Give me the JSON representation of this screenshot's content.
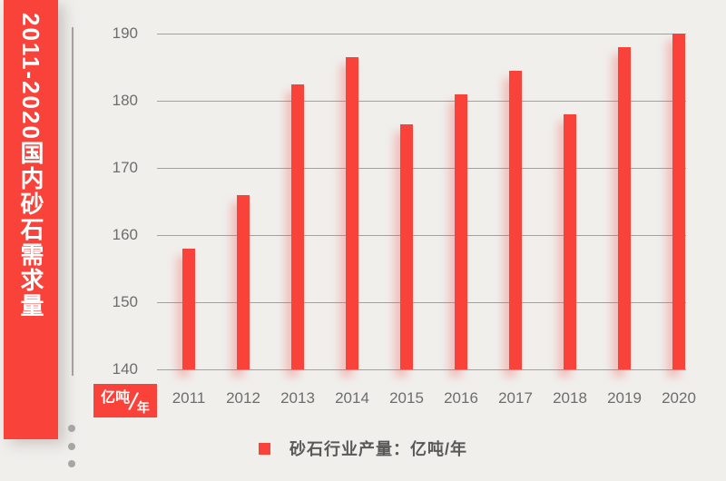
{
  "banner": {
    "title": "2011-2020国内砂石需求量"
  },
  "unit_badge": {
    "numerator": "亿吨",
    "slash": "/",
    "denominator": "年"
  },
  "legend": {
    "label": "砂石行业产量：亿吨/年"
  },
  "colors": {
    "background": "#F0EFEC",
    "brand_red": "#F9423A",
    "bar": "#F9423A",
    "gridline": "#A3A19D",
    "axis_text": "#6E6D6B",
    "legend_text": "#595856",
    "dots": "#A7A6A4"
  },
  "chart_data": {
    "type": "bar",
    "title": "2011-2020国内砂石需求量",
    "categories": [
      "2011",
      "2012",
      "2013",
      "2014",
      "2015",
      "2016",
      "2017",
      "2018",
      "2019",
      "2020"
    ],
    "values": [
      158,
      166,
      182.5,
      186.5,
      176.5,
      181,
      184.5,
      178,
      188,
      190
    ],
    "series_name": "砂石行业产量",
    "unit": "亿吨/年",
    "ylabel": "亿吨/年",
    "ylim": [
      140,
      190
    ],
    "yticks": [
      140,
      150,
      160,
      170,
      180,
      190
    ],
    "grid": true,
    "legend_position": "bottom"
  },
  "decor": {
    "dots_count": 3
  }
}
